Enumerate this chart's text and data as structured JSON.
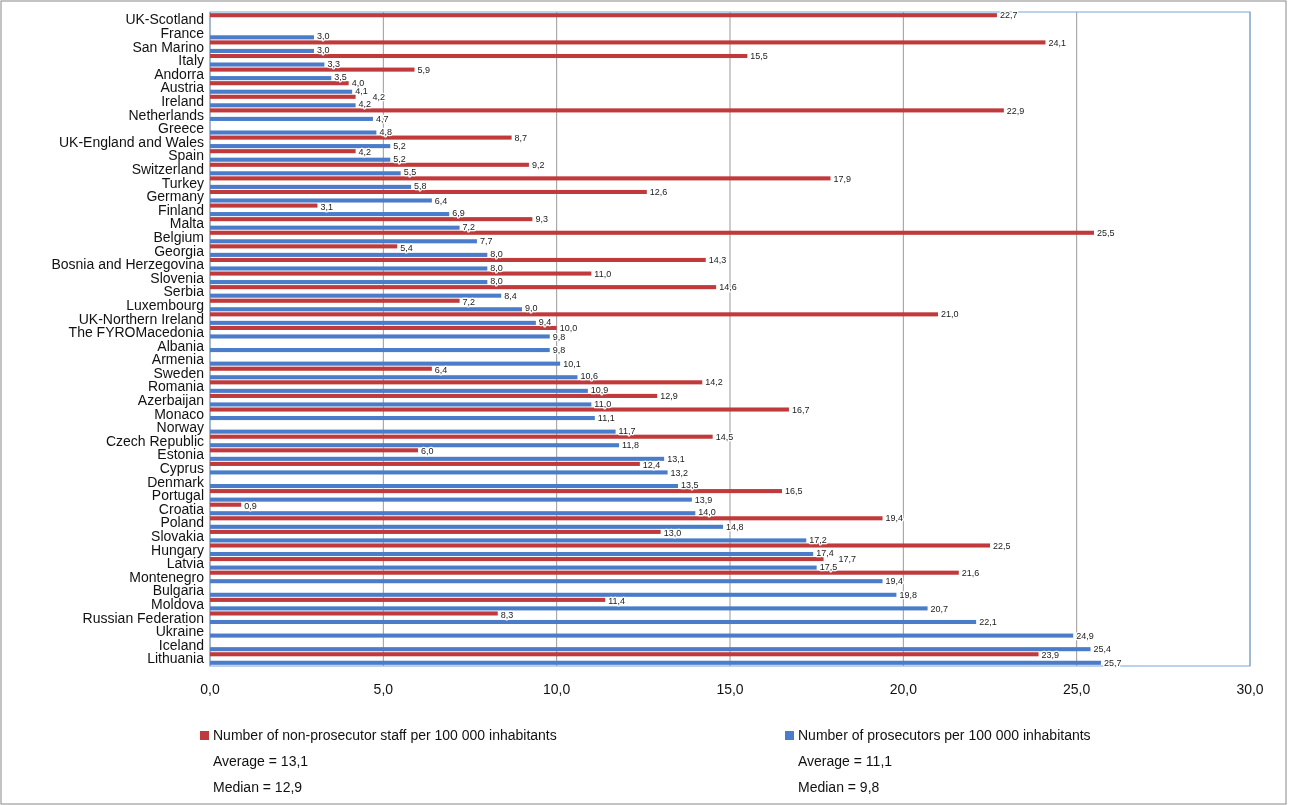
{
  "chart_data": {
    "type": "bar",
    "orientation": "horizontal",
    "categories": [
      "UK-Scotland",
      "France",
      "San Marino",
      "Italy",
      "Andorra",
      "Austria",
      "Ireland",
      "Netherlands",
      "Greece",
      "UK-England and Wales",
      "Spain",
      "Switzerland",
      "Turkey",
      "Germany",
      "Finland",
      "Malta",
      "Belgium",
      "Georgia",
      "Bosnia and Herzegovina",
      "Slovenia",
      "Serbia",
      "Luxembourg",
      "UK-Northern Ireland",
      "The FYROMacedonia",
      "Albania",
      "Armenia",
      "Sweden",
      "Romania",
      "Azerbaijan",
      "Monaco",
      "Norway",
      "Czech Republic",
      "Estonia",
      "Cyprus",
      "Denmark",
      "Portugal",
      "Croatia",
      "Poland",
      "Slovakia",
      "Hungary",
      "Latvia",
      "Montenegro",
      "Bulgaria",
      "Moldova",
      "Russian Federation",
      "Ukraine",
      "Iceland",
      "Lithuania"
    ],
    "series": [
      {
        "name": "Number of non-prosecutor staff per 100 000 inhabitants",
        "color": "#c0393b",
        "values": [
          22.7,
          null,
          24.1,
          15.5,
          5.9,
          4.0,
          4.2,
          22.9,
          null,
          8.7,
          4.2,
          9.2,
          17.9,
          12.6,
          3.1,
          9.3,
          25.5,
          5.4,
          14.3,
          11.0,
          14.6,
          7.2,
          21.0,
          10.0,
          null,
          null,
          6.4,
          14.2,
          12.9,
          16.7,
          null,
          14.5,
          6.0,
          12.4,
          null,
          16.5,
          0.9,
          19.4,
          13.0,
          22.5,
          17.7,
          21.6,
          null,
          11.4,
          8.3,
          null,
          null,
          23.9
        ],
        "value_labels": [
          "22,7",
          null,
          "24,1",
          "15,5",
          "5,9",
          "4,0",
          "4,2",
          "22,9",
          null,
          "8,7",
          "4,2",
          "9,2",
          "17,9",
          "12,6",
          "3,1",
          "9,3",
          "25,5",
          "5,4",
          "14,3",
          "11,0",
          "14,6",
          "7,2",
          "21,0",
          "10,0",
          null,
          null,
          "6,4",
          "14,2",
          "12,9",
          "16,7",
          null,
          "14,5",
          "6,0",
          "12,4",
          null,
          "16,5",
          "0,9",
          "19,4",
          "13,0",
          "22,5",
          "17,7",
          "21,6",
          null,
          "11,4",
          "8,3",
          null,
          null,
          "23,9"
        ]
      },
      {
        "name": "Number of prosecutors per 100 000 inhabitants",
        "color": "#4a7cc9",
        "values": [
          null,
          3.0,
          3.0,
          3.3,
          3.5,
          4.1,
          4.2,
          4.7,
          4.8,
          5.2,
          5.2,
          5.5,
          5.8,
          6.4,
          6.9,
          7.2,
          7.7,
          8.0,
          8.0,
          8.0,
          8.4,
          9.0,
          9.4,
          9.8,
          9.8,
          10.1,
          10.6,
          10.9,
          11.0,
          11.1,
          11.7,
          11.8,
          13.1,
          13.2,
          13.5,
          13.9,
          14.0,
          14.8,
          17.2,
          17.4,
          17.5,
          19.4,
          19.8,
          20.7,
          22.1,
          24.9,
          25.4,
          25.7
        ],
        "value_labels": [
          null,
          "3,0",
          "3,0",
          "3,3",
          "3,5",
          "4,1",
          "4,2",
          "4,7",
          "4,8",
          "5,2",
          "5,2",
          "5,5",
          "5,8",
          "6,4",
          "6,9",
          "7,2",
          "7,7",
          "8,0",
          "8,0",
          "8,0",
          "8,4",
          "9,0",
          "9,4",
          "9,8",
          "9,8",
          "10,1",
          "10,6",
          "10,9",
          "11,0",
          "11,1",
          "11,7",
          "11,8",
          "13,1",
          "13,2",
          "13,5",
          "13,9",
          "14,0",
          "14,8",
          "17,2",
          "17,4",
          "17,5",
          "19,4",
          "19,8",
          "20,7",
          "22,1",
          "24,9",
          "25,4",
          "25,7"
        ]
      }
    ],
    "xlim": [
      0,
      30
    ],
    "xticks": [
      {
        "value": 0,
        "label": "0,0"
      },
      {
        "value": 5,
        "label": "5,0"
      },
      {
        "value": 10,
        "label": "10,0"
      },
      {
        "value": 15,
        "label": "15,0"
      },
      {
        "value": 20,
        "label": "20,0"
      },
      {
        "value": 25,
        "label": "25,0"
      },
      {
        "value": 30,
        "label": "30,0"
      }
    ],
    "grid": "x",
    "legend": "bottom",
    "annotations": [
      "Average = 13,1",
      "Median = 12,9",
      "Average = 11,1",
      "Median = 9,8"
    ]
  }
}
